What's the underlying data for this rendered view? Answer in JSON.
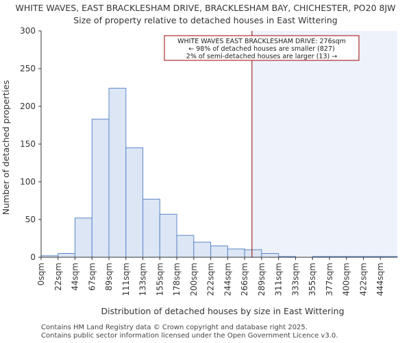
{
  "title": "WHITE WAVES, EAST BRACKLESHAM DRIVE, BRACKLESHAM BAY, CHICHESTER, PO20 8JW",
  "subtitle": "Size of property relative to detached houses in East Wittering",
  "footer": [
    "Contains HM Land Registry data © Crown copyright and database right 2025.",
    "Contains public sector information licensed under the Open Government Licence v3.0."
  ],
  "colors": {
    "bar_fill": "#dce6f5",
    "bar_stroke": "#5b86c7",
    "marker_line": "#8b0000",
    "shade": "#eef2fb",
    "annotation_border": "#a00000"
  },
  "chart_data": {
    "type": "bar",
    "xlabel": "Distribution of detached houses by size in East Wittering",
    "ylabel": "Number of detached properties",
    "categories": [
      "0sqm",
      "22sqm",
      "44sqm",
      "67sqm",
      "89sqm",
      "111sqm",
      "133sqm",
      "155sqm",
      "178sqm",
      "200sqm",
      "222sqm",
      "244sqm",
      "266sqm",
      "289sqm",
      "311sqm",
      "333sqm",
      "355sqm",
      "377sqm",
      "400sqm",
      "422sqm",
      "444sqm"
    ],
    "values": [
      2,
      5,
      52,
      183,
      224,
      145,
      77,
      57,
      29,
      20,
      15,
      11,
      10,
      5,
      1,
      0,
      1,
      1,
      1,
      1,
      1
    ],
    "ylim": [
      0,
      300
    ],
    "yticks": [
      0,
      50,
      100,
      150,
      200,
      250,
      300
    ],
    "marker_value_sqm": 276,
    "annotation": {
      "line1": "WHITE WAVES EAST BRACKLESHAM DRIVE: 276sqm",
      "line2": "← 98% of detached houses are smaller (827)",
      "line3": "2% of semi-detached houses are larger (13) →"
    }
  }
}
